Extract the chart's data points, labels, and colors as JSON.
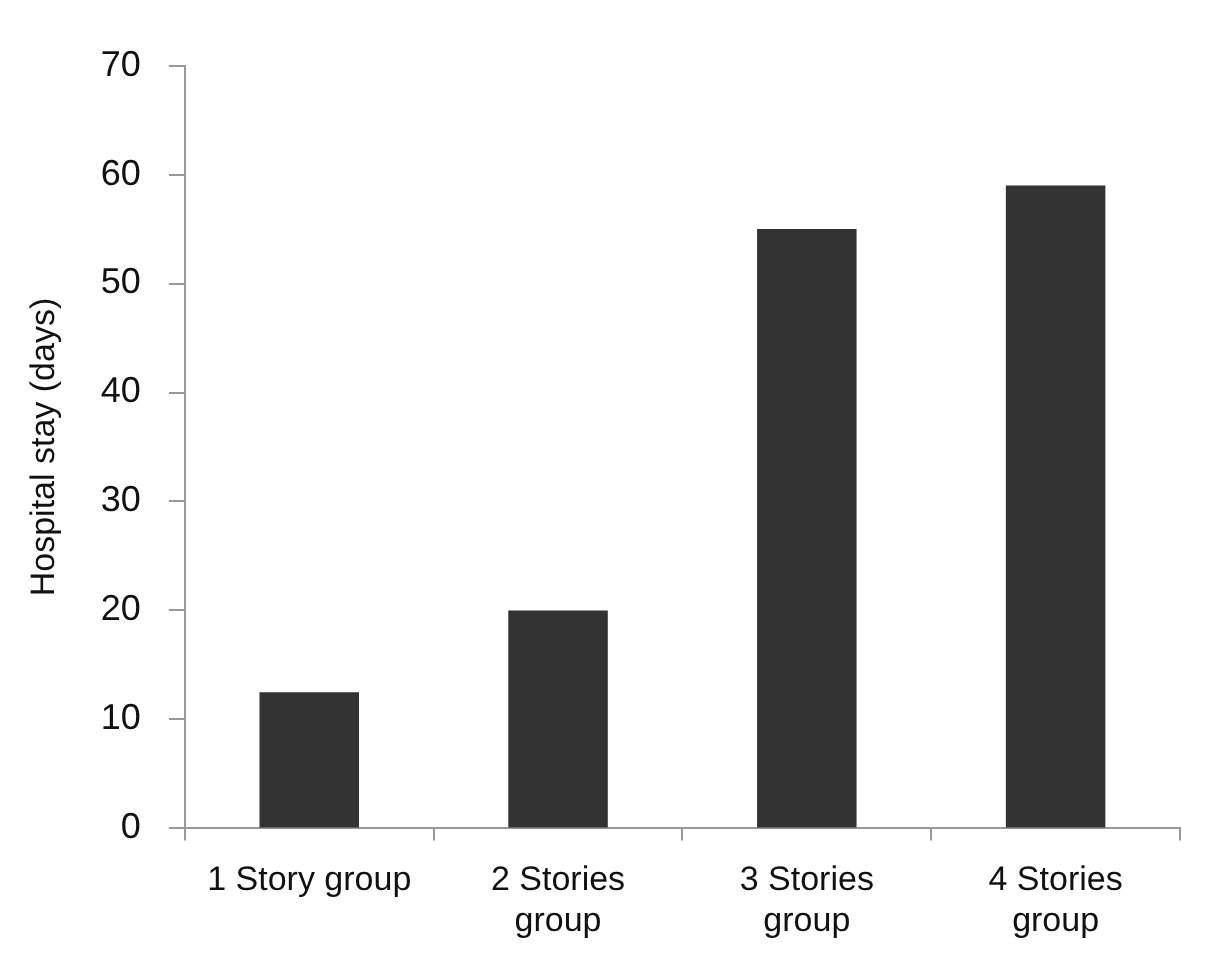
{
  "chart_data": {
    "type": "bar",
    "ylabel": "Hospital stay (days)",
    "categories": [
      "1 Story group",
      "2 Stories group",
      "3 Stories group",
      "4 Stories group"
    ],
    "values": [
      12.5,
      20,
      55,
      59
    ],
    "color": "#333333",
    "ylim": [
      0,
      70
    ],
    "yticks": [
      0,
      10,
      20,
      30,
      40,
      50,
      60,
      70
    ],
    "grid": false
  }
}
